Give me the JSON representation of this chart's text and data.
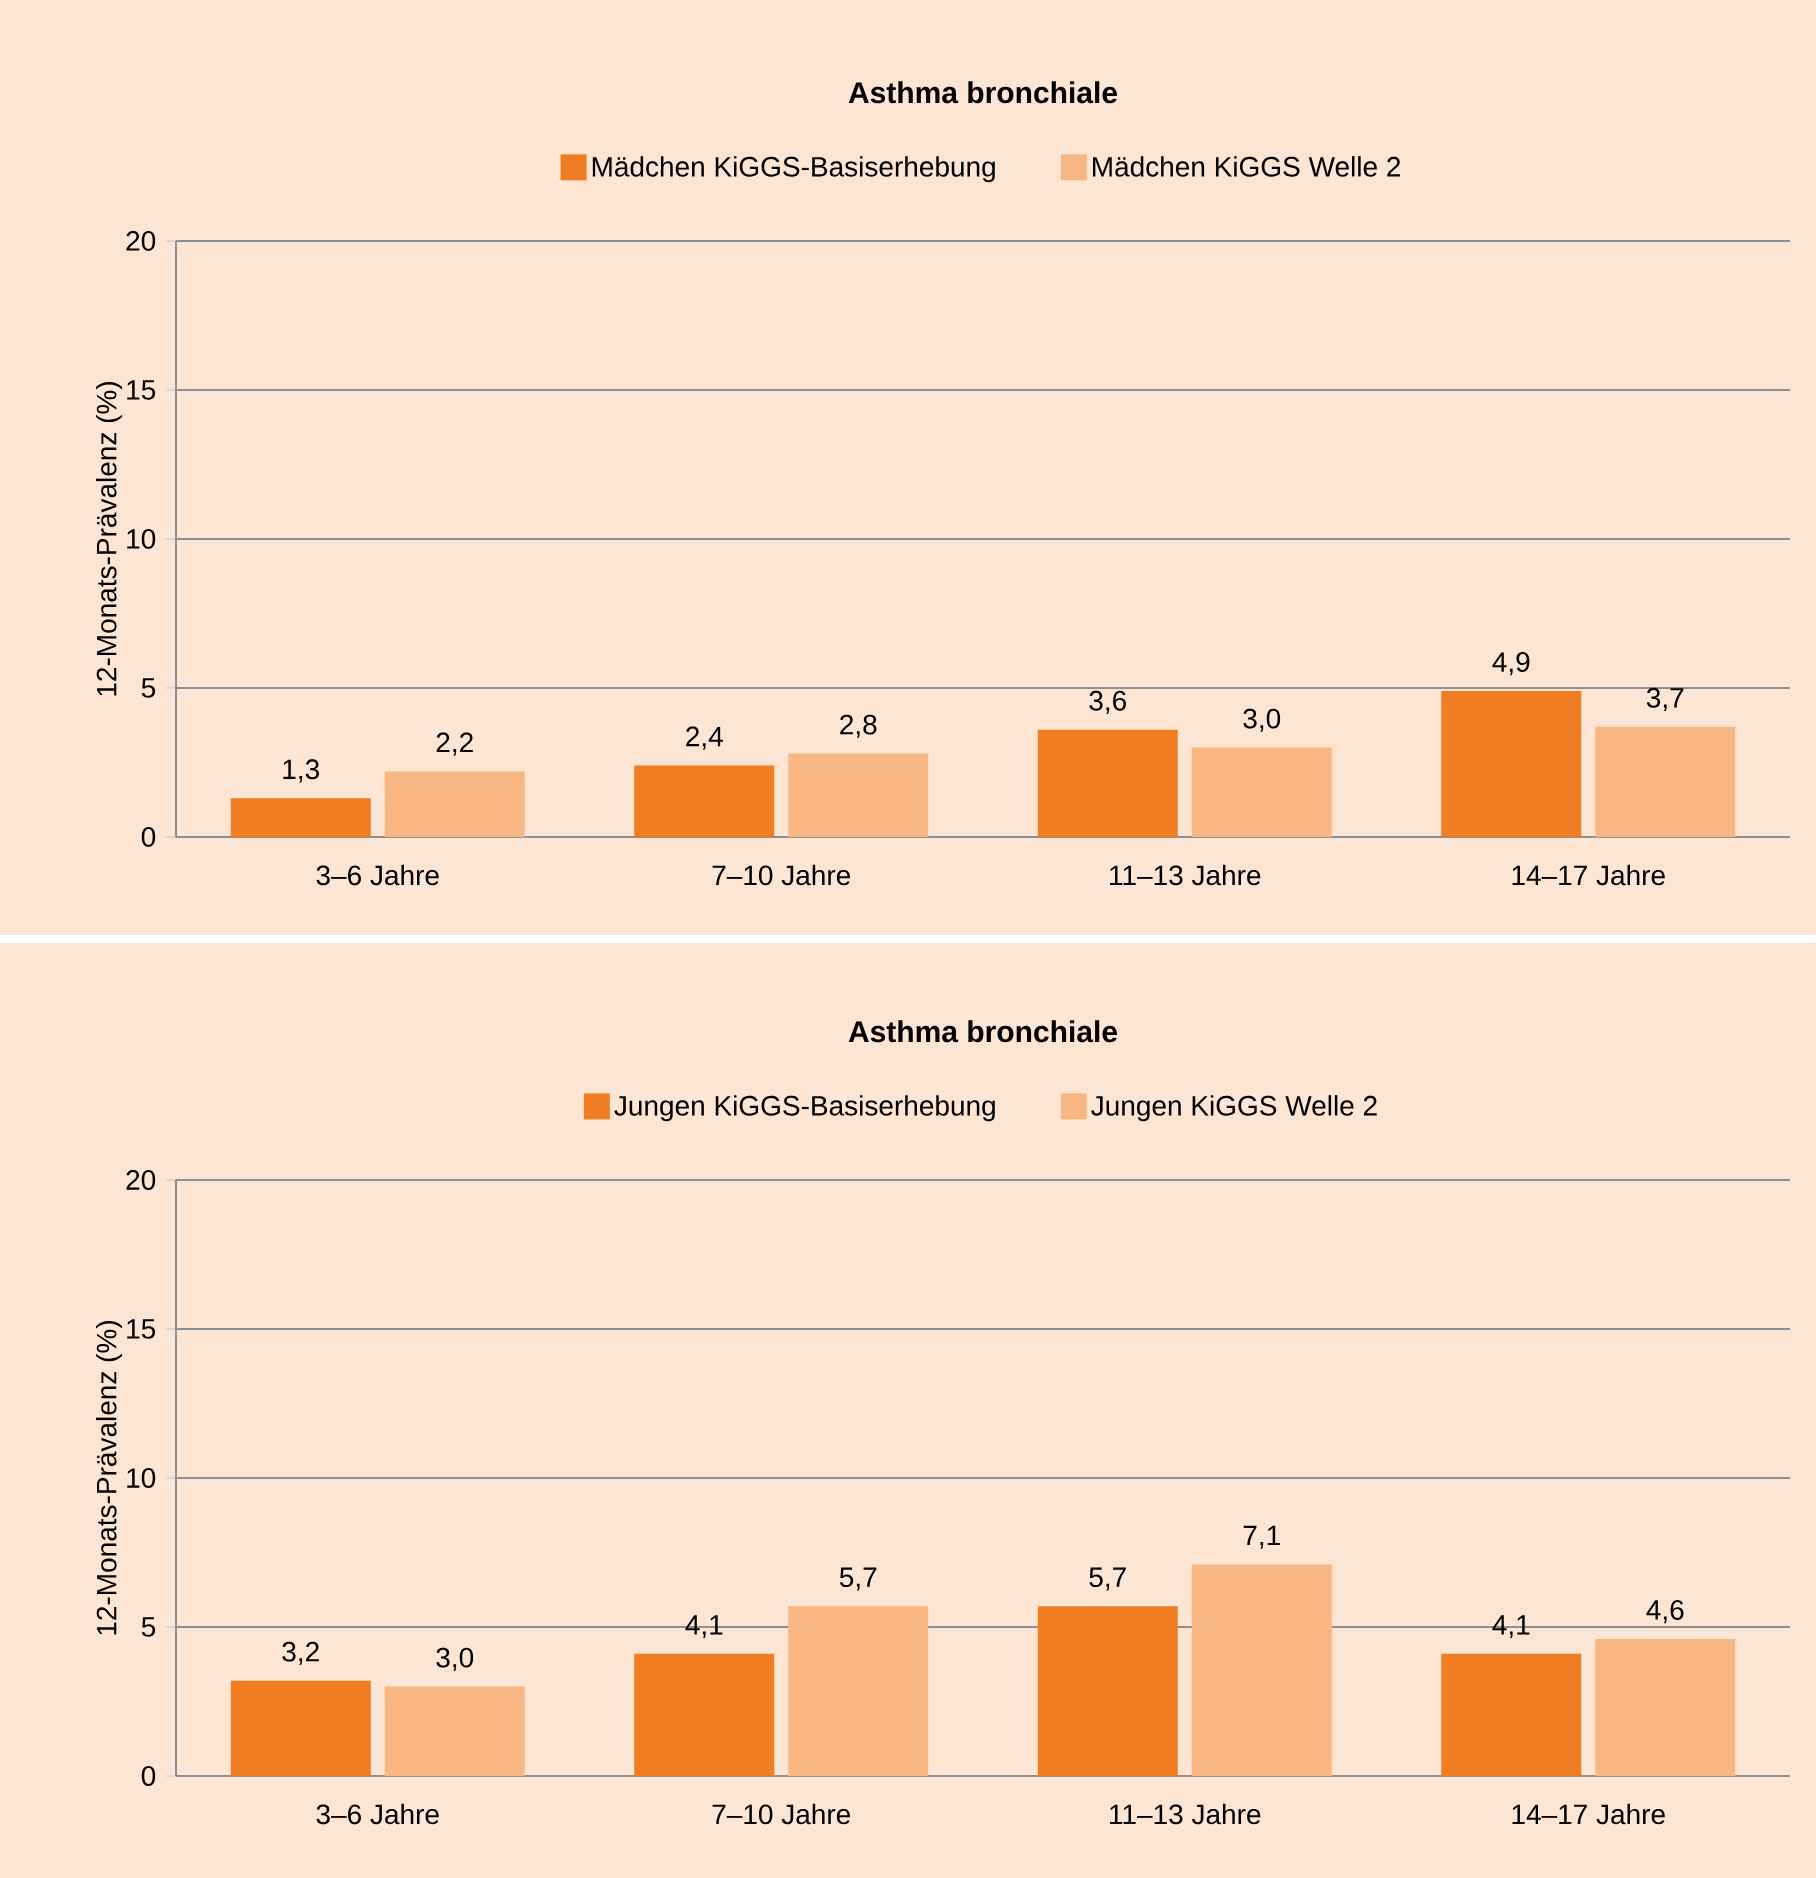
{
  "chart_data": [
    {
      "type": "bar",
      "title": "Asthma bronchiale",
      "ylabel": "12-Monats-Prävalenz (%)",
      "categories": [
        "3–6 Jahre",
        "7–10 Jahre",
        "11–13 Jahre",
        "14–17 Jahre"
      ],
      "series": [
        {
          "name": "Mädchen KiGGS-Basiserhebung",
          "color": "#f07d22",
          "values": [
            1.3,
            2.4,
            3.6,
            4.9
          ],
          "value_labels": [
            "1,3",
            "2,4",
            "3,6",
            "4,9"
          ]
        },
        {
          "name": "Mädchen KiGGS Welle 2",
          "color": "#f8b683",
          "values": [
            2.2,
            2.8,
            3.0,
            3.7
          ],
          "value_labels": [
            "2,2",
            "2,8",
            "3,0",
            "3,7"
          ]
        }
      ],
      "ylim": [
        0,
        20
      ],
      "yticks": [
        0,
        5,
        10,
        15,
        20
      ],
      "grid": "y",
      "legend": "top"
    },
    {
      "type": "bar",
      "title": "Asthma bronchiale",
      "ylabel": "12-Monats-Prävalenz (%)",
      "categories": [
        "3–6 Jahre",
        "7–10 Jahre",
        "11–13 Jahre",
        "14–17 Jahre"
      ],
      "series": [
        {
          "name": "Jungen KiGGS-Basiserhebung",
          "color": "#f07d22",
          "values": [
            3.2,
            4.1,
            5.7,
            4.1
          ],
          "value_labels": [
            "3,2",
            "4,1",
            "5,7",
            "4,1"
          ]
        },
        {
          "name": "Jungen KiGGS Welle 2",
          "color": "#f8b683",
          "values": [
            3.0,
            5.7,
            7.1,
            4.6
          ],
          "value_labels": [
            "3,0",
            "5,7",
            "7,1",
            "4,6"
          ]
        }
      ],
      "ylim": [
        0,
        20
      ],
      "yticks": [
        0,
        5,
        10,
        15,
        20
      ],
      "grid": "y",
      "legend": "top"
    }
  ]
}
